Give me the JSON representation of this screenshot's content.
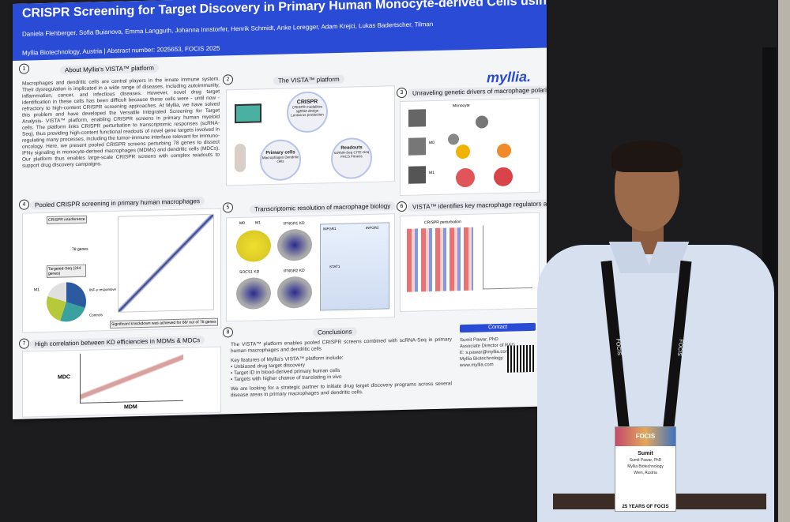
{
  "poster": {
    "title": "CRISPR Screening for Target Discovery in Primary Human Monocyte-derived Cells using the VISTA™ Platform",
    "authors_line1": "Daniela Flehberger, Sofia Buianova, Emma Langguth, Johanna Innstorfer, Henrik Schmidt, Anke Loregger, Adam Krejci, Lukas Badertscher, Tilmann Buerckstuemmer, Sumit Pawar",
    "affiliation": "Myllia Biotechnology, Austria | Abstract number: 2025653, FOCIS 2025",
    "logo": "myllia.",
    "sections": {
      "s1": {
        "num": "1",
        "title": "About Myllia's VISTA™ platform",
        "body": "Macrophages and dendritic cells are central players in the innate immune system. Their dysregulation is implicated in a wide range of diseases, including autoimmunity, inflammation, cancer, and infectious diseases. However, novel drug target identification in these cells has been difficult because these cells were - until now - refractory to high-content CRISPR screening approaches. At Myllia, we have solved this problem and have developed the Versatile Integrated Screening for Target Analysis- VISTA™ platform, enabling CRISPR screens in primary human myeloid cells. The platform links CRISPR perturbation to transcriptomic responses (scRNA-Seq), thus providing high-content functional readouts of novel gene targets involved in regulating many processes, including the tumor-immune interface relevant for immuno-oncology. Here, we present pooled CRISPR screens perturbing 78 genes to dissect IFNγ signaling in monocyte-derived macrophages (MDMs) and dendritic cells (MDCs). Our platform thus enables large-scale CRISPR screens with complex readouts to support drug discovery campaigns."
      },
      "s2": {
        "num": "2",
        "title": "The VISTA™ platform",
        "crispr": "CRISPR",
        "crispr_sub": "CRISPR modalities sgRNA design Lentivirus production",
        "primary": "Primary cells",
        "primary_sub": "Macrophages Dendritic cells",
        "readouts": "Readouts",
        "readouts_sub": "scRNA-Seq CITE-Seq FACS Fitness"
      },
      "s3": {
        "num": "3",
        "title": "Unraveling genetic drivers of macrophage polarization",
        "monocyte": "Monocyte",
        "m0": "M0",
        "m1": "M1",
        "m2": "M2"
      },
      "s4": {
        "num": "4",
        "title": "Pooled CRISPR screening in primary human macrophages",
        "crispr_int": "CRISPR interference",
        "genes": "78 genes",
        "targeted": "Targeted-Seq (244 genes)",
        "m1": "M1",
        "ifn": "INF-γ responsive",
        "controls": "Controls",
        "knockdown": "Significant knockdown was achieved for 68/ out of 78 genes"
      },
      "s5": {
        "num": "5",
        "title": "Transcriptomic resolution of macrophage biology",
        "m0": "M0",
        "m1": "M1",
        "ifngr1": "IFNGR1 KD",
        "socs1": "SOCS1 KD",
        "ifngr2": "IFNGR2 KD",
        "infr1": "INFGR1",
        "infr2": "INFGR2",
        "stat1": "STAT1"
      },
      "s6": {
        "num": "6",
        "title": "VISTA™ identifies key macrophage regulators and signatures",
        "perturb": "CRISPR perturbation"
      },
      "s7": {
        "num": "7",
        "title": "High correlation between KD efficiencies in MDMs & MDCs",
        "ylab": "MDC",
        "xlab": "MDM"
      },
      "s8": {
        "num": "8",
        "title": "Conclusions",
        "p1": "The VISTA™ platform enables pooled CRISPR screens combined with scRNA-Seq in primary human macrophages and dendritic cells",
        "p2": "Key features of Myllia's VISTA™ platform include:",
        "b1": "• Unbiased drug target discovery",
        "b2": "• Target ID in blood-derived primary human cells",
        "b3": "• Targets with higher chance of translating in vivo",
        "p3": "We are looking for a strategic partner to initiate drug target discovery programs across several disease areas in primary macrophages and dendritic cells."
      },
      "contact": {
        "label": "Contact",
        "name": "Sumit Pawar, PhD",
        "role": "Associate Director of R&D",
        "email": "E: s.pawar@myllia.com",
        "company": "Myllia Biotechnology",
        "web": "www.myllia.com"
      }
    }
  },
  "badge": {
    "top": "FOCIS",
    "name": "Sumit",
    "fullname": "Sumit Pawar, PhD",
    "org": "Myllia Biotechnology",
    "place": "Wien, Austria",
    "footer": "25 YEARS OF FOCIS"
  },
  "lanyard": {
    "text": "FOCIS"
  }
}
